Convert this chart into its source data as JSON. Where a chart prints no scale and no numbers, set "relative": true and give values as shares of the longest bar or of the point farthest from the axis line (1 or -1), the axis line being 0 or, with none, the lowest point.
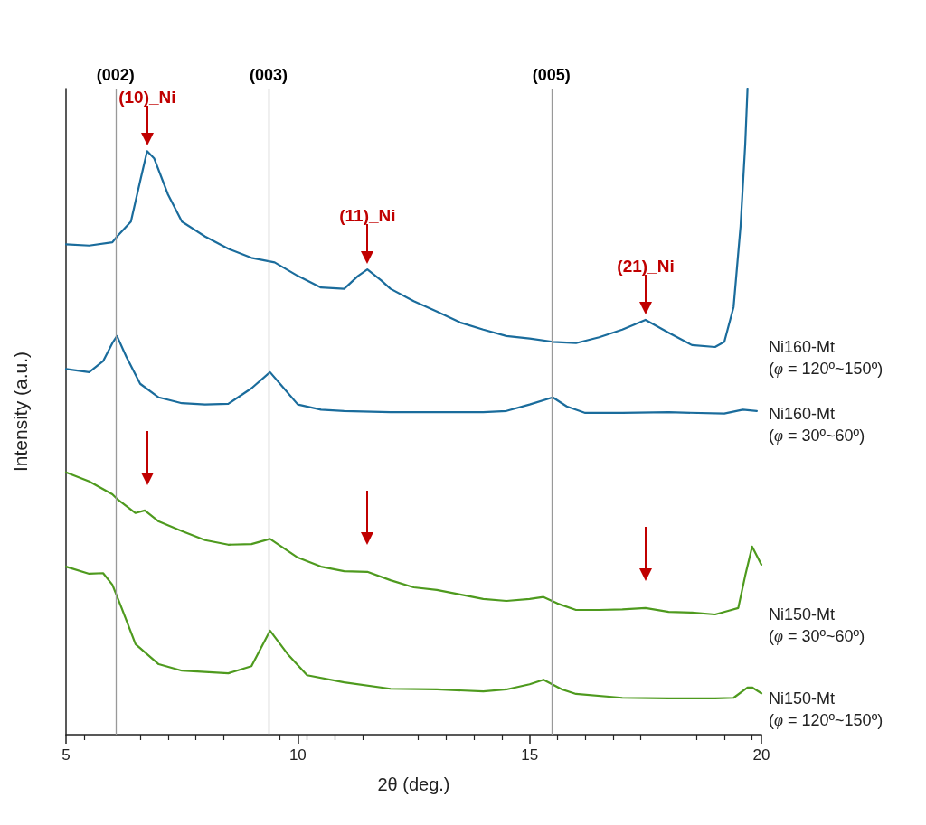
{
  "chart_data": {
    "type": "line",
    "relative": true,
    "xlabel": "2θ (deg.)",
    "ylabel": "Intensity (a.u.)",
    "xlim": [
      5,
      20
    ],
    "xticks": [
      5,
      10,
      15,
      20
    ],
    "grid": false,
    "legend": false,
    "marker": "none",
    "line_style": "solid",
    "x": [
      5.0,
      5.5,
      6.0,
      6.1,
      6.4,
      6.6,
      6.75,
      6.9,
      7.2,
      7.5,
      8.0,
      8.5,
      9.0,
      9.5,
      10.0,
      10.5,
      11.0,
      11.3,
      11.5,
      11.8,
      12.0,
      12.5,
      13.0,
      13.5,
      14.0,
      14.5,
      15.0,
      15.5,
      16.0,
      16.5,
      17.0,
      17.5,
      18.0,
      18.5,
      19.0,
      19.2,
      19.4,
      19.55,
      19.65,
      19.7
    ],
    "series": [
      {
        "name": "Ni160-Mt\n(φ = 120º~150º)",
        "color": "#1a6c9c",
        "values": [
          0.759,
          0.757,
          0.762,
          0.771,
          0.794,
          0.857,
          0.903,
          0.892,
          0.836,
          0.794,
          0.771,
          0.752,
          0.738,
          0.731,
          0.71,
          0.692,
          0.69,
          0.71,
          0.72,
          0.703,
          0.69,
          0.671,
          0.655,
          0.638,
          0.627,
          0.617,
          0.613,
          0.608,
          0.606,
          0.615,
          0.627,
          0.642,
          0.622,
          0.603,
          0.6,
          0.608,
          0.662,
          0.787,
          0.913,
          1.0
        ]
      },
      {
        "name": "Ni160-Mt\n(φ = 30º~60º)",
        "color": "#1a6c9c",
        "x": [
          5.0,
          5.5,
          5.8,
          6.0,
          6.1,
          6.3,
          6.6,
          7.0,
          7.5,
          8.0,
          8.5,
          9.0,
          9.4,
          9.7,
          10.0,
          10.5,
          11.0,
          12.0,
          13.0,
          14.0,
          14.5,
          15.0,
          15.5,
          15.8,
          16.2,
          17.0,
          18.0,
          19.2,
          19.6,
          19.9
        ],
        "values": [
          0.566,
          0.561,
          0.578,
          0.606,
          0.617,
          0.585,
          0.543,
          0.522,
          0.513,
          0.511,
          0.512,
          0.536,
          0.561,
          0.536,
          0.511,
          0.503,
          0.501,
          0.499,
          0.499,
          0.499,
          0.501,
          0.511,
          0.522,
          0.508,
          0.498,
          0.498,
          0.499,
          0.497,
          0.503,
          0.501
        ]
      },
      {
        "name": "Ni150-Mt\n(φ = 30º~60º)",
        "color": "#4e9a1e",
        "x": [
          5.0,
          5.5,
          6.0,
          6.1,
          6.5,
          6.7,
          7.0,
          7.5,
          8.0,
          8.5,
          9.0,
          9.4,
          10.0,
          10.5,
          11.0,
          11.5,
          12.0,
          12.5,
          13.0,
          13.5,
          14.0,
          14.5,
          15.0,
          15.3,
          15.6,
          16.0,
          16.5,
          17.0,
          17.5,
          18.0,
          18.5,
          19.0,
          19.3,
          19.5,
          19.65,
          19.8,
          20.0
        ],
        "values": [
          0.406,
          0.392,
          0.372,
          0.365,
          0.343,
          0.347,
          0.33,
          0.315,
          0.301,
          0.294,
          0.295,
          0.303,
          0.274,
          0.26,
          0.253,
          0.252,
          0.239,
          0.228,
          0.224,
          0.217,
          0.21,
          0.207,
          0.21,
          0.213,
          0.203,
          0.193,
          0.193,
          0.194,
          0.196,
          0.19,
          0.189,
          0.186,
          0.192,
          0.196,
          0.246,
          0.291,
          0.263
        ]
      },
      {
        "name": "Ni150-Mt\n(φ = 120º~150º)",
        "color": "#4e9a1e",
        "x": [
          5.0,
          5.5,
          5.8,
          6.0,
          6.2,
          6.5,
          7.0,
          7.5,
          8.0,
          8.5,
          9.0,
          9.4,
          9.8,
          10.2,
          11.0,
          12.0,
          13.0,
          14.0,
          14.5,
          15.0,
          15.3,
          15.7,
          16.0,
          17.0,
          18.0,
          19.0,
          19.4,
          19.7,
          19.8,
          20.0
        ],
        "values": [
          0.26,
          0.249,
          0.25,
          0.232,
          0.196,
          0.14,
          0.109,
          0.099,
          0.097,
          0.095,
          0.106,
          0.161,
          0.123,
          0.092,
          0.081,
          0.071,
          0.07,
          0.067,
          0.07,
          0.078,
          0.085,
          0.07,
          0.063,
          0.057,
          0.056,
          0.056,
          0.057,
          0.073,
          0.073,
          0.064
        ]
      }
    ],
    "ref_lines": [
      {
        "axis": "x",
        "value": 6.07,
        "color": "#999999",
        "line_style": "solid"
      },
      {
        "axis": "x",
        "value": 9.37,
        "color": "#999999",
        "line_style": "solid"
      },
      {
        "axis": "x",
        "value": 15.47,
        "color": "#999999",
        "line_style": "solid"
      }
    ],
    "annotations": [
      {
        "text": "(002)",
        "x": 6.07,
        "y": 1
      },
      {
        "text": "(003)",
        "x": 9.37,
        "y": 1
      },
      {
        "text": "(005)",
        "x": 15.47,
        "y": 1
      },
      {
        "text": "(10)_Ni",
        "x": 6.75,
        "y": 0.903
      },
      {
        "text": "(11)_Ni",
        "x": 11.5,
        "y": 0.72
      },
      {
        "text": "(21)_Ni",
        "x": 17.5,
        "y": 0.642
      }
    ]
  }
}
